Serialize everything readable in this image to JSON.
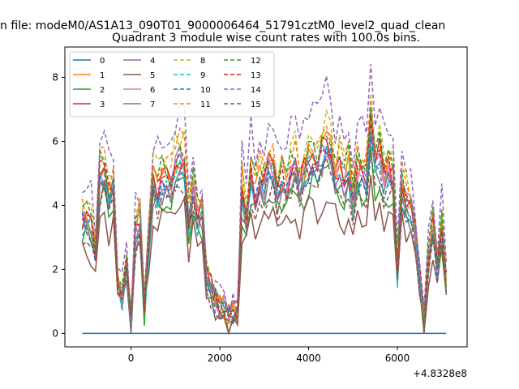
{
  "chart_data": {
    "type": "line",
    "suptitle": "n file: modeM0/AS1A13_090T01_9000006464_51791cztM0_level2_quad_clean",
    "title": "Quadrant 3 module wise count rates with 100.0s bins.",
    "xlabel": "",
    "ylabel": "",
    "x_offset_label": "+4.8328e8",
    "xlim": [
      -1490,
      7570
    ],
    "ylim": [
      -0.42,
      8.95
    ],
    "xticks": [
      0,
      2000,
      4000,
      6000
    ],
    "yticks": [
      0,
      2,
      4,
      6,
      8
    ],
    "grid": false,
    "legend": {
      "placement": "top-left",
      "columns": 4
    },
    "x": [
      -1100,
      -1000,
      -900,
      -800,
      -700,
      -600,
      -500,
      -400,
      -300,
      -200,
      -100,
      0,
      100,
      200,
      300,
      400,
      500,
      600,
      700,
      800,
      900,
      1000,
      1100,
      1200,
      1300,
      1400,
      1500,
      1600,
      1700,
      1800,
      1900,
      2000,
      2100,
      2200,
      2300,
      2400,
      2500,
      2600,
      2700,
      2800,
      2900,
      3000,
      3100,
      3200,
      3300,
      3400,
      3500,
      3600,
      3700,
      3800,
      3900,
      4000,
      4100,
      4200,
      4300,
      4400,
      4500,
      4600,
      4700,
      4800,
      4900,
      5000,
      5100,
      5200,
      5300,
      5400,
      5500,
      5600,
      5700,
      5800,
      5900,
      6000,
      6100,
      6200,
      6300,
      6400,
      6500,
      6600,
      6700,
      6800,
      6900,
      7000,
      7100
    ],
    "series": [
      {
        "name": "0",
        "dashed": false,
        "color": "#1f77b4",
        "scale": 0.0,
        "seed": 1
      },
      {
        "name": "1",
        "dashed": false,
        "color": "#ff7f0e",
        "scale": 1.0,
        "seed": 2
      },
      {
        "name": "2",
        "dashed": false,
        "color": "#2ca02c",
        "scale": 0.84,
        "seed": 3
      },
      {
        "name": "3",
        "dashed": false,
        "color": "#d62728",
        "scale": 1.0,
        "seed": 4
      },
      {
        "name": "4",
        "dashed": false,
        "color": "#9467bd",
        "scale": 0.95,
        "seed": 5
      },
      {
        "name": "5",
        "dashed": false,
        "color": "#8c564b",
        "scale": 0.72,
        "seed": 6
      },
      {
        "name": "6",
        "dashed": false,
        "color": "#e377c2",
        "scale": 0.97,
        "seed": 7
      },
      {
        "name": "7",
        "dashed": false,
        "color": "#7f7f7f",
        "scale": 0.9,
        "seed": 8
      },
      {
        "name": "8",
        "dashed": true,
        "color": "#bcbd22",
        "scale": 1.1,
        "seed": 9
      },
      {
        "name": "9",
        "dashed": true,
        "color": "#17becf",
        "scale": 0.93,
        "seed": 10
      },
      {
        "name": "10",
        "dashed": true,
        "color": "#1f77b4",
        "scale": 0.92,
        "seed": 11
      },
      {
        "name": "11",
        "dashed": true,
        "color": "#ff7f0e",
        "scale": 1.08,
        "seed": 12
      },
      {
        "name": "12",
        "dashed": true,
        "color": "#2ca02c",
        "scale": 1.05,
        "seed": 13
      },
      {
        "name": "13",
        "dashed": true,
        "color": "#d62728",
        "scale": 0.98,
        "seed": 14
      },
      {
        "name": "14",
        "dashed": true,
        "color": "#9467bd",
        "scale": 1.25,
        "seed": 15
      },
      {
        "name": "15",
        "dashed": true,
        "color": "#8c564b",
        "scale": 0.85,
        "seed": 16
      }
    ],
    "base_profile": [
      3.7,
      3.6,
      3.5,
      2.7,
      5.1,
      5.2,
      4.4,
      4.7,
      1.8,
      1.2,
      2.0,
      0.3,
      3.2,
      3.5,
      0.8,
      3.0,
      4.9,
      4.6,
      4.9,
      5.0,
      4.8,
      5.3,
      5.6,
      5.5,
      3.5,
      4.6,
      3.7,
      3.9,
      1.7,
      1.4,
      1.1,
      0.9,
      0.8,
      0.5,
      0.7,
      0.7,
      4.5,
      3.7,
      5.1,
      4.4,
      5.0,
      4.7,
      5.3,
      5.2,
      4.5,
      4.9,
      4.7,
      5.3,
      5.4,
      4.7,
      5.1,
      5.5,
      5.6,
      5.4,
      5.8,
      6.1,
      5.9,
      5.0,
      5.3,
      4.9,
      5.3,
      4.2,
      5.2,
      5.1,
      5.0,
      6.9,
      5.4,
      5.7,
      5.0,
      5.2,
      4.9,
      2.0,
      4.7,
      4.2,
      4.0,
      3.3,
      1.8,
      0.5,
      2.5,
      3.4,
      2.2,
      3.5,
      1.7
    ]
  }
}
